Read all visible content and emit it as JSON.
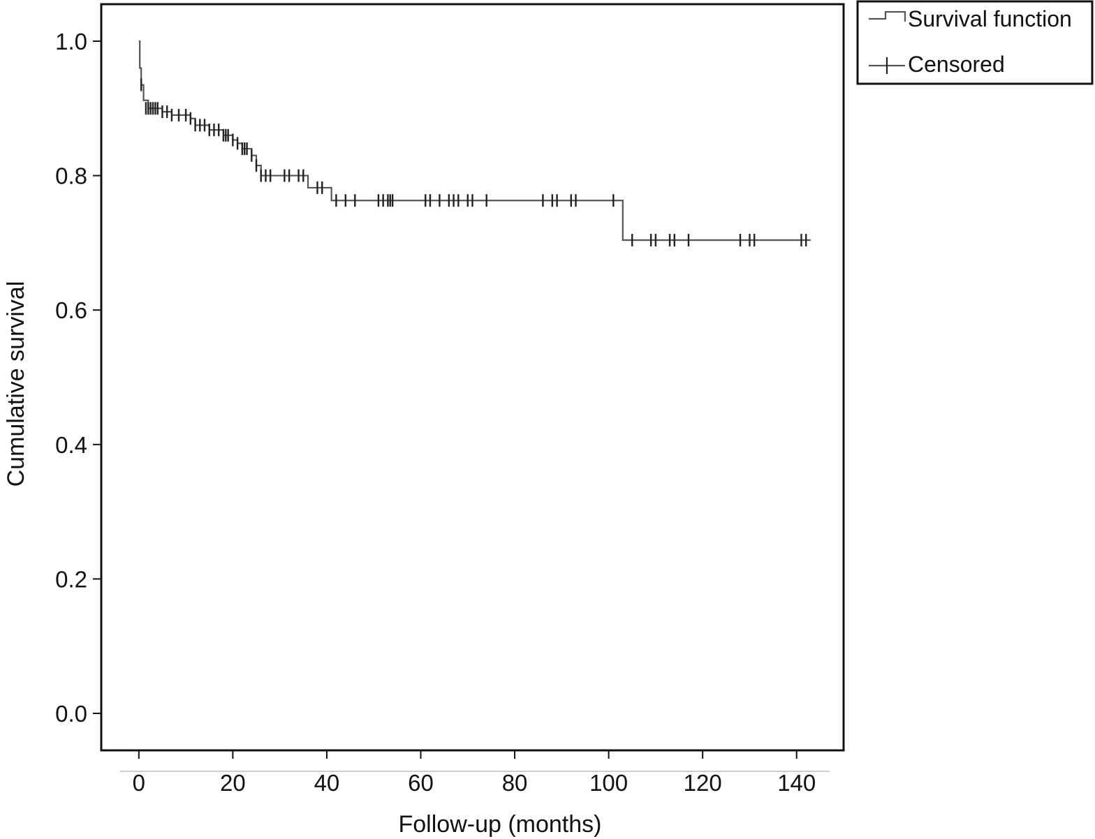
{
  "chart_data": {
    "type": "line",
    "title": "",
    "xlabel": "Follow-up (months)",
    "ylabel": "Cumulative survival",
    "xlim": [
      -8,
      150
    ],
    "ylim": [
      -0.055,
      1.055
    ],
    "x_ticks": [
      0,
      20,
      40,
      60,
      80,
      100,
      120,
      140
    ],
    "x_tick_labels": [
      "0",
      "20",
      "40",
      "60",
      "80",
      "100",
      "120",
      "140"
    ],
    "y_ticks": [
      0.0,
      0.2,
      0.4,
      0.6,
      0.8,
      1.0
    ],
    "y_tick_labels": [
      "0.0",
      "0.2",
      "0.4",
      "0.6",
      "0.8",
      "1.0"
    ],
    "grid": false,
    "legend": {
      "placement": "outside-top-right",
      "entries": [
        {
          "label": "Survival function",
          "symbol": "step-line"
        },
        {
          "label": "Censored",
          "symbol": "cross"
        }
      ]
    },
    "colors": {
      "line": "#555555",
      "censor": "#222222",
      "axis": "#111111",
      "background": "#ffffff"
    },
    "series": [
      {
        "name": "Survival function",
        "kind": "step",
        "points": [
          [
            0,
            1.0
          ],
          [
            0.2,
            0.96
          ],
          [
            0.5,
            0.935
          ],
          [
            1,
            0.912
          ],
          [
            2,
            0.9
          ],
          [
            5,
            0.895
          ],
          [
            7,
            0.89
          ],
          [
            11,
            0.885
          ],
          [
            12,
            0.875
          ],
          [
            15,
            0.868
          ],
          [
            18,
            0.86
          ],
          [
            20,
            0.853
          ],
          [
            21,
            0.848
          ],
          [
            22,
            0.84
          ],
          [
            24,
            0.83
          ],
          [
            25,
            0.815
          ],
          [
            26,
            0.8
          ],
          [
            36,
            0.782
          ],
          [
            41,
            0.763
          ],
          [
            103,
            0.763
          ],
          [
            103,
            0.704
          ],
          [
            143,
            0.704
          ]
        ]
      },
      {
        "name": "Censored",
        "kind": "censor",
        "x": [
          0.5,
          1.5,
          2,
          2.5,
          3,
          3.5,
          4,
          5,
          6,
          7,
          8.5,
          10,
          11,
          12,
          13,
          14,
          15,
          16,
          17,
          18,
          18.5,
          19,
          20,
          21,
          22,
          22.5,
          23,
          24,
          25,
          26,
          27,
          28,
          31,
          32,
          34,
          35,
          38,
          39,
          42,
          44,
          46,
          51,
          52,
          53,
          53.5,
          54,
          61,
          62,
          64,
          66,
          67,
          68,
          70,
          71,
          74,
          86,
          88,
          89,
          92,
          93,
          101,
          105,
          109,
          110,
          113,
          114,
          117,
          128,
          130,
          131,
          141,
          142
        ],
        "y": [
          0.935,
          0.9,
          0.9,
          0.9,
          0.9,
          0.9,
          0.9,
          0.895,
          0.895,
          0.89,
          0.89,
          0.89,
          0.885,
          0.875,
          0.875,
          0.875,
          0.868,
          0.868,
          0.868,
          0.86,
          0.86,
          0.86,
          0.853,
          0.848,
          0.84,
          0.84,
          0.84,
          0.83,
          0.815,
          0.8,
          0.8,
          0.8,
          0.8,
          0.8,
          0.8,
          0.8,
          0.782,
          0.782,
          0.763,
          0.763,
          0.763,
          0.763,
          0.763,
          0.763,
          0.763,
          0.763,
          0.763,
          0.763,
          0.763,
          0.763,
          0.763,
          0.763,
          0.763,
          0.763,
          0.763,
          0.763,
          0.763,
          0.763,
          0.763,
          0.763,
          0.763,
          0.704,
          0.704,
          0.704,
          0.704,
          0.704,
          0.704,
          0.704,
          0.704,
          0.704,
          0.704,
          0.704
        ]
      }
    ]
  }
}
